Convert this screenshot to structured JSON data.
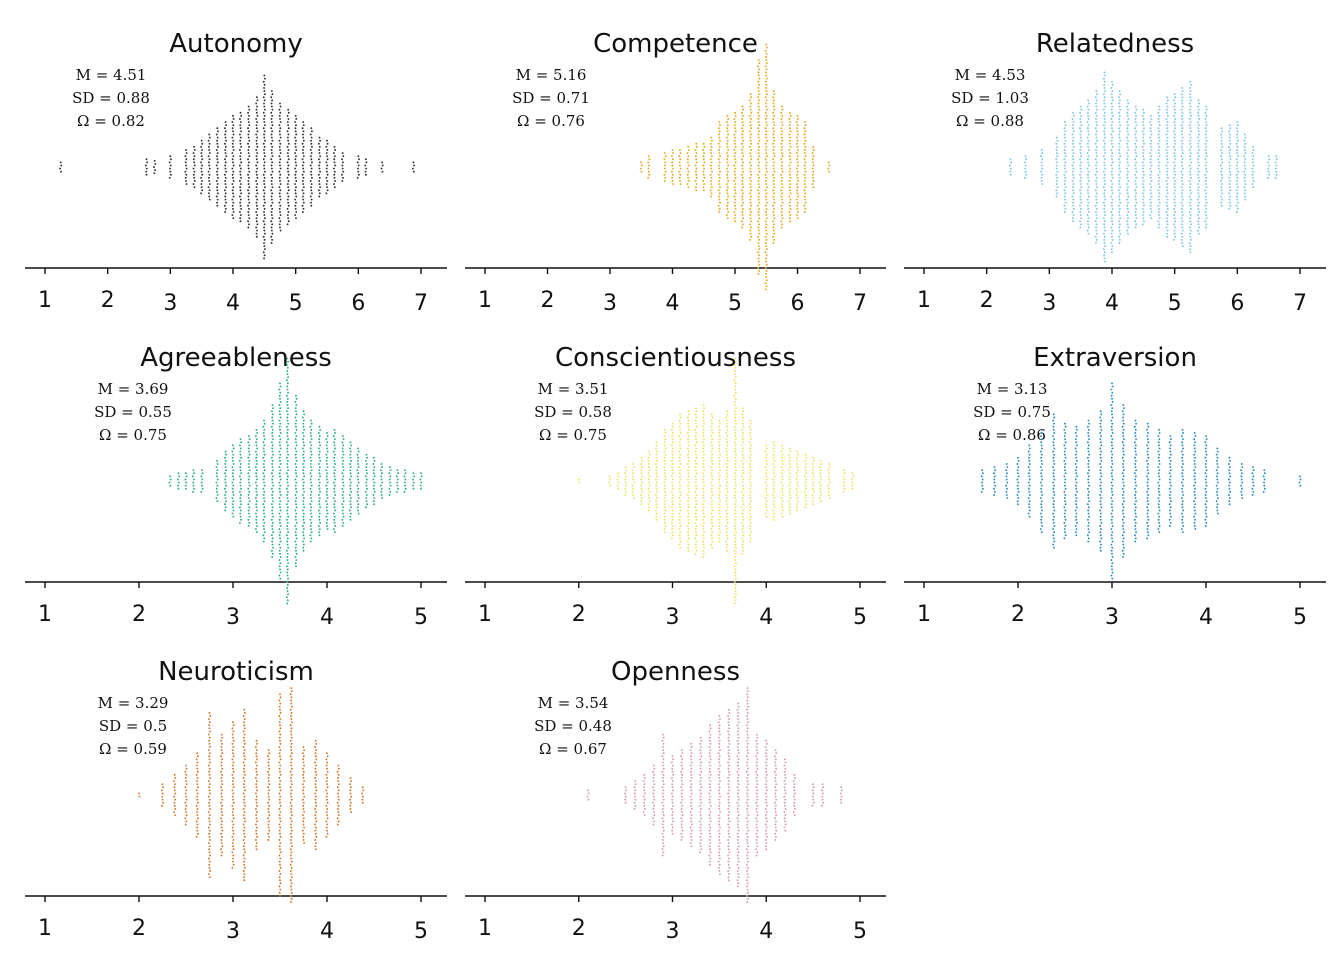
{
  "chart_data": [
    {
      "type": "scatter",
      "subtype": "beeswarm",
      "title": "Autonomy",
      "color": "#333333",
      "stats": {
        "m": "M = 4.51",
        "sd": "SD = 0.88",
        "omega": "Ω = 0.82"
      },
      "xlim": [
        1,
        7
      ],
      "ticks": [
        "1",
        "2",
        "3",
        "4",
        "5",
        "6",
        "7"
      ],
      "x": [
        1.25,
        2.62,
        2.75,
        3.0,
        3.25,
        3.38,
        3.5,
        3.62,
        3.75,
        3.88,
        4.0,
        4.12,
        4.25,
        4.38,
        4.5,
        4.62,
        4.75,
        4.88,
        5.0,
        5.12,
        5.25,
        5.38,
        5.5,
        5.62,
        5.75,
        6.0,
        6.12,
        6.38,
        6.88
      ],
      "counts": [
        4,
        6,
        5,
        8,
        12,
        14,
        18,
        22,
        26,
        30,
        34,
        36,
        40,
        46,
        60,
        50,
        42,
        38,
        34,
        30,
        26,
        20,
        18,
        14,
        10,
        8,
        6,
        4,
        4
      ]
    },
    {
      "type": "scatter",
      "subtype": "beeswarm",
      "title": "Competence",
      "color": "#e6a817",
      "stats": {
        "m": "M = 5.16",
        "sd": "SD = 0.71",
        "omega": "Ω = 0.76"
      },
      "xlim": [
        1,
        7
      ],
      "ticks": [
        "1",
        "2",
        "3",
        "4",
        "5",
        "6",
        "7"
      ],
      "x": [
        3.5,
        3.62,
        3.88,
        4.0,
        4.12,
        4.25,
        4.38,
        4.5,
        4.62,
        4.75,
        4.88,
        5.0,
        5.12,
        5.25,
        5.38,
        5.5,
        5.62,
        5.75,
        5.88,
        6.0,
        6.12,
        6.25,
        6.5
      ],
      "counts": [
        4,
        8,
        10,
        12,
        12,
        14,
        16,
        16,
        20,
        30,
        34,
        36,
        40,
        48,
        70,
        80,
        50,
        40,
        36,
        34,
        30,
        14,
        4
      ]
    },
    {
      "type": "scatter",
      "subtype": "beeswarm",
      "title": "Relatedness",
      "color": "#7cc6e6",
      "stats": {
        "m": "M = 4.53",
        "sd": "SD = 1.03",
        "omega": "Ω = 0.88"
      },
      "xlim": [
        1,
        7
      ],
      "ticks": [
        "1",
        "2",
        "3",
        "4",
        "5",
        "6",
        "7"
      ],
      "x": [
        2.38,
        2.62,
        2.88,
        3.12,
        3.25,
        3.38,
        3.5,
        3.62,
        3.75,
        3.88,
        4.0,
        4.12,
        4.25,
        4.38,
        4.5,
        4.62,
        4.75,
        4.88,
        5.0,
        5.12,
        5.25,
        5.38,
        5.5,
        5.75,
        5.88,
        6.0,
        6.12,
        6.25,
        6.5,
        6.62
      ],
      "counts": [
        6,
        8,
        12,
        20,
        30,
        36,
        40,
        44,
        50,
        62,
        56,
        50,
        44,
        40,
        38,
        34,
        40,
        46,
        48,
        52,
        56,
        44,
        40,
        26,
        28,
        30,
        22,
        14,
        8,
        8
      ]
    },
    {
      "type": "scatter",
      "subtype": "beeswarm",
      "title": "Agreeableness",
      "color": "#2bb08a",
      "stats": {
        "m": "M = 3.69",
        "sd": "SD = 0.55",
        "omega": "Ω = 0.75"
      },
      "xlim": [
        1,
        5
      ],
      "ticks": [
        "1",
        "2",
        "3",
        "4",
        "5"
      ],
      "x": [
        2.33,
        2.42,
        2.5,
        2.58,
        2.67,
        2.83,
        2.92,
        3.0,
        3.08,
        3.17,
        3.25,
        3.33,
        3.42,
        3.5,
        3.58,
        3.67,
        3.75,
        3.83,
        3.92,
        4.0,
        4.08,
        4.17,
        4.25,
        4.33,
        4.42,
        4.5,
        4.58,
        4.67,
        4.75,
        4.83,
        4.92,
        5.0
      ],
      "counts": [
        4,
        6,
        6,
        8,
        8,
        14,
        20,
        24,
        28,
        30,
        34,
        40,
        50,
        64,
        80,
        56,
        46,
        40,
        36,
        32,
        34,
        30,
        26,
        22,
        18,
        16,
        12,
        10,
        8,
        8,
        6,
        6
      ]
    },
    {
      "type": "scatter",
      "subtype": "beeswarm",
      "title": "Conscientiousness",
      "color": "#f0e060",
      "stats": {
        "m": "M = 3.51",
        "sd": "SD = 0.58",
        "omega": "Ω = 0.75"
      },
      "xlim": [
        1,
        5
      ],
      "ticks": [
        "1",
        "2",
        "3",
        "4",
        "5"
      ],
      "x": [
        2.0,
        2.33,
        2.42,
        2.5,
        2.58,
        2.67,
        2.75,
        2.83,
        2.92,
        3.0,
        3.08,
        3.17,
        3.25,
        3.33,
        3.42,
        3.5,
        3.58,
        3.67,
        3.75,
        3.83,
        4.0,
        4.08,
        4.17,
        4.25,
        4.33,
        4.42,
        4.5,
        4.58,
        4.67,
        4.83,
        4.92
      ],
      "counts": [
        2,
        4,
        6,
        10,
        12,
        16,
        20,
        26,
        34,
        38,
        44,
        46,
        48,
        50,
        44,
        40,
        46,
        80,
        48,
        40,
        24,
        26,
        24,
        22,
        20,
        18,
        16,
        14,
        12,
        8,
        6
      ]
    },
    {
      "type": "scatter",
      "subtype": "beeswarm",
      "title": "Extraversion",
      "color": "#2a8fb8",
      "stats": {
        "m": "M = 3.13",
        "sd": "SD = 0.75",
        "omega": "Ω = 0.86"
      },
      "xlim": [
        1,
        5
      ],
      "ticks": [
        "1",
        "2",
        "3",
        "4",
        "5"
      ],
      "x": [
        1.62,
        1.75,
        1.88,
        2.0,
        2.12,
        2.25,
        2.38,
        2.5,
        2.62,
        2.75,
        2.88,
        3.0,
        3.12,
        3.25,
        3.38,
        3.5,
        3.62,
        3.75,
        3.88,
        4.0,
        4.12,
        4.25,
        4.38,
        4.5,
        4.62,
        5.0
      ],
      "counts": [
        8,
        10,
        12,
        16,
        24,
        34,
        44,
        38,
        36,
        40,
        46,
        64,
        50,
        40,
        38,
        34,
        30,
        34,
        32,
        30,
        22,
        16,
        12,
        10,
        8,
        4
      ]
    },
    {
      "type": "scatter",
      "subtype": "beeswarm",
      "title": "Neuroticism",
      "color": "#d4782a",
      "stats": {
        "m": "M = 3.29",
        "sd": "SD = 0.5",
        "omega": "Ω = 0.59"
      },
      "xlim": [
        1,
        5
      ],
      "ticks": [
        "1",
        "2",
        "3",
        "4",
        "5"
      ],
      "x": [
        2.0,
        2.25,
        2.38,
        2.5,
        2.62,
        2.75,
        2.88,
        3.0,
        3.12,
        3.25,
        3.38,
        3.5,
        3.62,
        3.75,
        3.88,
        4.0,
        4.12,
        4.25,
        4.38
      ],
      "counts": [
        2,
        8,
        14,
        20,
        28,
        54,
        40,
        48,
        56,
        36,
        30,
        66,
        70,
        32,
        36,
        28,
        20,
        12,
        6
      ]
    },
    {
      "type": "scatter",
      "subtype": "beeswarm",
      "title": "Openness",
      "color": "#d49ab8",
      "stats": {
        "m": "M = 3.54",
        "sd": "SD = 0.48",
        "omega": "Ω = 0.67"
      },
      "xlim": [
        1,
        5
      ],
      "ticks": [
        "1",
        "2",
        "3",
        "4",
        "5"
      ],
      "x": [
        2.1,
        2.5,
        2.6,
        2.7,
        2.8,
        2.9,
        3.0,
        3.1,
        3.2,
        3.3,
        3.4,
        3.5,
        3.6,
        3.7,
        3.8,
        3.9,
        4.0,
        4.1,
        4.2,
        4.3,
        4.5,
        4.6,
        4.8
      ],
      "counts": [
        4,
        6,
        10,
        14,
        20,
        40,
        26,
        30,
        34,
        38,
        46,
        52,
        56,
        60,
        70,
        40,
        36,
        30,
        24,
        14,
        8,
        8,
        6
      ]
    }
  ]
}
